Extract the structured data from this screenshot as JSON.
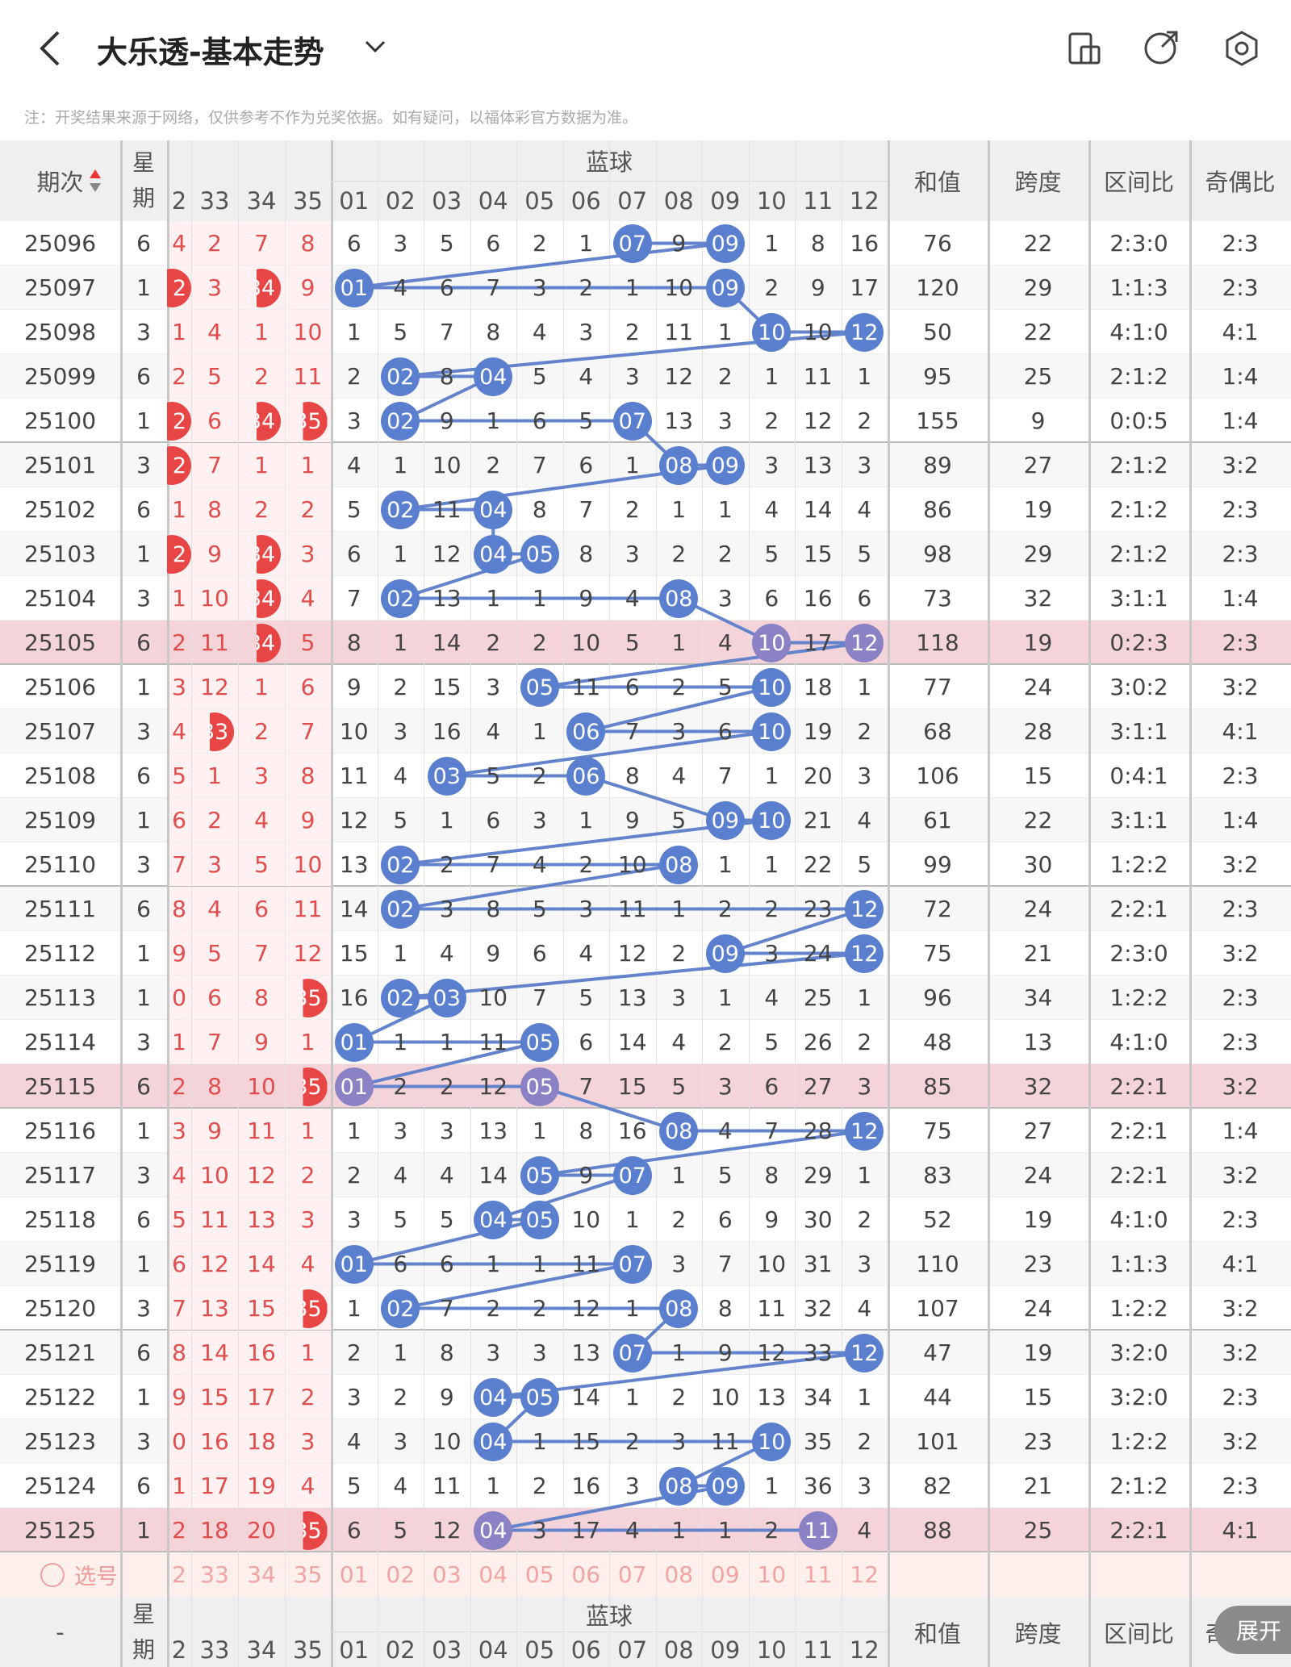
{
  "header": {
    "title": "大乐透-基本走势",
    "note": "注：开奖结果来源于网络，仅供参考不作为兑奖依据。如有疑问，以福体彩官方数据为准。"
  },
  "table": {
    "columns": {
      "period": "期次",
      "weekday": "星期",
      "blue_group": "蓝球",
      "red": [
        "2",
        "33",
        "34",
        "35"
      ],
      "blue": [
        "01",
        "02",
        "03",
        "04",
        "05",
        "06",
        "07",
        "08",
        "09",
        "10",
        "11",
        "12"
      ],
      "sum": "和值",
      "span": "跨度",
      "zone": "区间比",
      "odd_even": "奇偶比"
    },
    "rows": [
      {
        "period": "25096",
        "weekday": "6",
        "red": [
          "4",
          "2",
          "7",
          "8"
        ],
        "red_hits": [],
        "blue": [
          "6",
          "3",
          "5",
          "6",
          "2",
          "1",
          "07",
          "9",
          "09",
          "1",
          "8",
          "16"
        ],
        "blue_hits": [
          6,
          8
        ],
        "sum": "76",
        "span": "22",
        "zone": "2:3:0",
        "odd_even": "2:3",
        "highlight": false
      },
      {
        "period": "25097",
        "weekday": "1",
        "red": [
          "2",
          "3",
          "34",
          "9"
        ],
        "red_hits": [
          0,
          2
        ],
        "blue": [
          "01",
          "4",
          "6",
          "7",
          "3",
          "2",
          "1",
          "10",
          "09",
          "2",
          "9",
          "17"
        ],
        "blue_hits": [
          0,
          8
        ],
        "sum": "120",
        "span": "29",
        "zone": "1:1:3",
        "odd_even": "2:3",
        "highlight": false
      },
      {
        "period": "25098",
        "weekday": "3",
        "red": [
          "1",
          "4",
          "1",
          "10"
        ],
        "red_hits": [],
        "blue": [
          "1",
          "5",
          "7",
          "8",
          "4",
          "3",
          "2",
          "11",
          "1",
          "10",
          "10",
          "12"
        ],
        "blue_hits": [
          9,
          11
        ],
        "sum": "50",
        "span": "22",
        "zone": "4:1:0",
        "odd_even": "4:1",
        "highlight": false
      },
      {
        "period": "25099",
        "weekday": "6",
        "red": [
          "2",
          "5",
          "2",
          "11"
        ],
        "red_hits": [],
        "blue": [
          "2",
          "02",
          "8",
          "04",
          "5",
          "4",
          "3",
          "12",
          "2",
          "1",
          "11",
          "1"
        ],
        "blue_hits": [
          1,
          3
        ],
        "sum": "95",
        "span": "25",
        "zone": "2:1:2",
        "odd_even": "1:4",
        "highlight": false
      },
      {
        "period": "25100",
        "weekday": "1",
        "red": [
          "2",
          "6",
          "34",
          "35"
        ],
        "red_hits": [
          0,
          2,
          3
        ],
        "blue": [
          "3",
          "02",
          "9",
          "1",
          "6",
          "5",
          "07",
          "13",
          "3",
          "2",
          "12",
          "2"
        ],
        "blue_hits": [
          1,
          6
        ],
        "sum": "155",
        "span": "9",
        "zone": "0:0:5",
        "odd_even": "1:4",
        "highlight": false
      },
      {
        "period": "25101",
        "weekday": "3",
        "red": [
          "2",
          "7",
          "1",
          "1"
        ],
        "red_hits": [
          0
        ],
        "blue": [
          "4",
          "1",
          "10",
          "2",
          "7",
          "6",
          "1",
          "08",
          "09",
          "3",
          "13",
          "3"
        ],
        "blue_hits": [
          7,
          8
        ],
        "sum": "89",
        "span": "27",
        "zone": "2:1:2",
        "odd_even": "3:2",
        "highlight": false
      },
      {
        "period": "25102",
        "weekday": "6",
        "red": [
          "1",
          "8",
          "2",
          "2"
        ],
        "red_hits": [],
        "blue": [
          "5",
          "02",
          "11",
          "04",
          "8",
          "7",
          "2",
          "1",
          "1",
          "4",
          "14",
          "4"
        ],
        "blue_hits": [
          1,
          3
        ],
        "sum": "86",
        "span": "19",
        "zone": "2:1:2",
        "odd_even": "2:3",
        "highlight": false
      },
      {
        "period": "25103",
        "weekday": "1",
        "red": [
          "2",
          "9",
          "34",
          "3"
        ],
        "red_hits": [
          0,
          2
        ],
        "blue": [
          "6",
          "1",
          "12",
          "04",
          "05",
          "8",
          "3",
          "2",
          "2",
          "5",
          "15",
          "5"
        ],
        "blue_hits": [
          3,
          4
        ],
        "sum": "98",
        "span": "29",
        "zone": "2:1:2",
        "odd_even": "2:3",
        "highlight": false
      },
      {
        "period": "25104",
        "weekday": "3",
        "red": [
          "1",
          "10",
          "34",
          "4"
        ],
        "red_hits": [
          2
        ],
        "blue": [
          "7",
          "02",
          "13",
          "1",
          "1",
          "9",
          "4",
          "08",
          "3",
          "6",
          "16",
          "6"
        ],
        "blue_hits": [
          1,
          7
        ],
        "sum": "73",
        "span": "32",
        "zone": "3:1:1",
        "odd_even": "1:4",
        "highlight": false
      },
      {
        "period": "25105",
        "weekday": "6",
        "red": [
          "2",
          "11",
          "34",
          "5"
        ],
        "red_hits": [
          2
        ],
        "blue": [
          "8",
          "1",
          "14",
          "2",
          "2",
          "10",
          "5",
          "1",
          "4",
          "10",
          "17",
          "12"
        ],
        "blue_hits": [
          9,
          11
        ],
        "sum": "118",
        "span": "19",
        "zone": "0:2:3",
        "odd_even": "2:3",
        "highlight": true
      },
      {
        "period": "25106",
        "weekday": "1",
        "red": [
          "3",
          "12",
          "1",
          "6"
        ],
        "red_hits": [],
        "blue": [
          "9",
          "2",
          "15",
          "3",
          "05",
          "11",
          "6",
          "2",
          "5",
          "10",
          "18",
          "1"
        ],
        "blue_hits": [
          4,
          9
        ],
        "sum": "77",
        "span": "24",
        "zone": "3:0:2",
        "odd_even": "3:2",
        "highlight": false
      },
      {
        "period": "25107",
        "weekday": "3",
        "red": [
          "4",
          "33",
          "2",
          "7"
        ],
        "red_hits": [
          1
        ],
        "blue": [
          "10",
          "3",
          "16",
          "4",
          "1",
          "06",
          "7",
          "3",
          "6",
          "10",
          "19",
          "2"
        ],
        "blue_hits": [
          5,
          9
        ],
        "sum": "68",
        "span": "28",
        "zone": "3:1:1",
        "odd_even": "4:1",
        "highlight": false
      },
      {
        "period": "25108",
        "weekday": "6",
        "red": [
          "5",
          "1",
          "3",
          "8"
        ],
        "red_hits": [],
        "blue": [
          "11",
          "4",
          "03",
          "5",
          "2",
          "06",
          "8",
          "4",
          "7",
          "1",
          "20",
          "3"
        ],
        "blue_hits": [
          2,
          5
        ],
        "sum": "106",
        "span": "15",
        "zone": "0:4:1",
        "odd_even": "2:3",
        "highlight": false
      },
      {
        "period": "25109",
        "weekday": "1",
        "red": [
          "6",
          "2",
          "4",
          "9"
        ],
        "red_hits": [],
        "blue": [
          "12",
          "5",
          "1",
          "6",
          "3",
          "1",
          "9",
          "5",
          "09",
          "10",
          "21",
          "4"
        ],
        "blue_hits": [
          8,
          9
        ],
        "sum": "61",
        "span": "22",
        "zone": "3:1:1",
        "odd_even": "1:4",
        "highlight": false
      },
      {
        "period": "25110",
        "weekday": "3",
        "red": [
          "7",
          "3",
          "5",
          "10"
        ],
        "red_hits": [],
        "blue": [
          "13",
          "02",
          "2",
          "7",
          "4",
          "2",
          "10",
          "08",
          "1",
          "1",
          "22",
          "5"
        ],
        "blue_hits": [
          1,
          7
        ],
        "sum": "99",
        "span": "30",
        "zone": "1:2:2",
        "odd_even": "3:2",
        "highlight": false
      },
      {
        "period": "25111",
        "weekday": "6",
        "red": [
          "8",
          "4",
          "6",
          "11"
        ],
        "red_hits": [],
        "blue": [
          "14",
          "02",
          "3",
          "8",
          "5",
          "3",
          "11",
          "1",
          "2",
          "2",
          "23",
          "12"
        ],
        "blue_hits": [
          1,
          11
        ],
        "sum": "72",
        "span": "24",
        "zone": "2:2:1",
        "odd_even": "2:3",
        "highlight": false
      },
      {
        "period": "25112",
        "weekday": "1",
        "red": [
          "9",
          "5",
          "7",
          "12"
        ],
        "red_hits": [],
        "blue": [
          "15",
          "1",
          "4",
          "9",
          "6",
          "4",
          "12",
          "2",
          "09",
          "3",
          "24",
          "12"
        ],
        "blue_hits": [
          8,
          11
        ],
        "sum": "75",
        "span": "21",
        "zone": "2:3:0",
        "odd_even": "3:2",
        "highlight": false
      },
      {
        "period": "25113",
        "weekday": "1",
        "red": [
          "0",
          "6",
          "8",
          "35"
        ],
        "red_hits": [
          3
        ],
        "blue": [
          "16",
          "02",
          "03",
          "10",
          "7",
          "5",
          "13",
          "3",
          "1",
          "4",
          "25",
          "1"
        ],
        "blue_hits": [
          1,
          2
        ],
        "sum": "96",
        "span": "34",
        "zone": "1:2:2",
        "odd_even": "2:3",
        "highlight": false
      },
      {
        "period": "25114",
        "weekday": "3",
        "red": [
          "1",
          "7",
          "9",
          "1"
        ],
        "red_hits": [],
        "blue": [
          "01",
          "1",
          "1",
          "11",
          "05",
          "6",
          "14",
          "4",
          "2",
          "5",
          "26",
          "2"
        ],
        "blue_hits": [
          0,
          4
        ],
        "sum": "48",
        "span": "13",
        "zone": "4:1:0",
        "odd_even": "2:3",
        "highlight": false
      },
      {
        "period": "25115",
        "weekday": "6",
        "red": [
          "2",
          "8",
          "10",
          "35"
        ],
        "red_hits": [
          3
        ],
        "blue": [
          "01",
          "2",
          "2",
          "12",
          "05",
          "7",
          "15",
          "5",
          "3",
          "6",
          "27",
          "3"
        ],
        "blue_hits": [
          0,
          4
        ],
        "sum": "85",
        "span": "32",
        "zone": "2:2:1",
        "odd_even": "3:2",
        "highlight": true
      },
      {
        "period": "25116",
        "weekday": "1",
        "red": [
          "3",
          "9",
          "11",
          "1"
        ],
        "red_hits": [],
        "blue": [
          "1",
          "3",
          "3",
          "13",
          "1",
          "8",
          "16",
          "08",
          "4",
          "7",
          "28",
          "12"
        ],
        "blue_hits": [
          7,
          11
        ],
        "sum": "75",
        "span": "27",
        "zone": "2:2:1",
        "odd_even": "1:4",
        "highlight": false
      },
      {
        "period": "25117",
        "weekday": "3",
        "red": [
          "4",
          "10",
          "12",
          "2"
        ],
        "red_hits": [],
        "blue": [
          "2",
          "4",
          "4",
          "14",
          "05",
          "9",
          "07",
          "1",
          "5",
          "8",
          "29",
          "1"
        ],
        "blue_hits": [
          4,
          6
        ],
        "sum": "83",
        "span": "24",
        "zone": "2:2:1",
        "odd_even": "3:2",
        "highlight": false
      },
      {
        "period": "25118",
        "weekday": "6",
        "red": [
          "5",
          "11",
          "13",
          "3"
        ],
        "red_hits": [],
        "blue": [
          "3",
          "5",
          "5",
          "04",
          "05",
          "10",
          "1",
          "2",
          "6",
          "9",
          "30",
          "2"
        ],
        "blue_hits": [
          3,
          4
        ],
        "sum": "52",
        "span": "19",
        "zone": "4:1:0",
        "odd_even": "2:3",
        "highlight": false
      },
      {
        "period": "25119",
        "weekday": "1",
        "red": [
          "6",
          "12",
          "14",
          "4"
        ],
        "red_hits": [],
        "blue": [
          "01",
          "6",
          "6",
          "1",
          "1",
          "11",
          "07",
          "3",
          "7",
          "10",
          "31",
          "3"
        ],
        "blue_hits": [
          0,
          6
        ],
        "sum": "110",
        "span": "23",
        "zone": "1:1:3",
        "odd_even": "4:1",
        "highlight": false
      },
      {
        "period": "25120",
        "weekday": "3",
        "red": [
          "7",
          "13",
          "15",
          "35"
        ],
        "red_hits": [
          3
        ],
        "blue": [
          "1",
          "02",
          "7",
          "2",
          "2",
          "12",
          "1",
          "08",
          "8",
          "11",
          "32",
          "4"
        ],
        "blue_hits": [
          1,
          7
        ],
        "sum": "107",
        "span": "24",
        "zone": "1:2:2",
        "odd_even": "3:2",
        "highlight": false
      },
      {
        "period": "25121",
        "weekday": "6",
        "red": [
          "8",
          "14",
          "16",
          "1"
        ],
        "red_hits": [],
        "blue": [
          "2",
          "1",
          "8",
          "3",
          "3",
          "13",
          "07",
          "1",
          "9",
          "12",
          "33",
          "12"
        ],
        "blue_hits": [
          6,
          11
        ],
        "sum": "47",
        "span": "19",
        "zone": "3:2:0",
        "odd_even": "3:2",
        "highlight": false
      },
      {
        "period": "25122",
        "weekday": "1",
        "red": [
          "9",
          "15",
          "17",
          "2"
        ],
        "red_hits": [],
        "blue": [
          "3",
          "2",
          "9",
          "04",
          "05",
          "14",
          "1",
          "2",
          "10",
          "13",
          "34",
          "1"
        ],
        "blue_hits": [
          3,
          4
        ],
        "sum": "44",
        "span": "15",
        "zone": "3:2:0",
        "odd_even": "2:3",
        "highlight": false
      },
      {
        "period": "25123",
        "weekday": "3",
        "red": [
          "0",
          "16",
          "18",
          "3"
        ],
        "red_hits": [],
        "blue": [
          "4",
          "3",
          "10",
          "04",
          "1",
          "15",
          "2",
          "3",
          "11",
          "10",
          "35",
          "2"
        ],
        "blue_hits": [
          3,
          9
        ],
        "sum": "101",
        "span": "23",
        "zone": "1:2:2",
        "odd_even": "3:2",
        "highlight": false
      },
      {
        "period": "25124",
        "weekday": "6",
        "red": [
          "1",
          "17",
          "19",
          "4"
        ],
        "red_hits": [],
        "blue": [
          "5",
          "4",
          "11",
          "1",
          "2",
          "16",
          "3",
          "08",
          "09",
          "1",
          "36",
          "3"
        ],
        "blue_hits": [
          7,
          8
        ],
        "sum": "82",
        "span": "21",
        "zone": "2:1:2",
        "odd_even": "2:3",
        "highlight": false
      },
      {
        "period": "25125",
        "weekday": "1",
        "red": [
          "2",
          "18",
          "20",
          "35"
        ],
        "red_hits": [
          3
        ],
        "blue": [
          "6",
          "5",
          "12",
          "04",
          "3",
          "17",
          "4",
          "1",
          "1",
          "2",
          "11",
          "4"
        ],
        "blue_hits": [
          3,
          10
        ],
        "sum": "88",
        "span": "25",
        "zone": "2:2:1",
        "odd_even": "4:1",
        "highlight": true
      }
    ]
  },
  "select_row": {
    "label": "选号"
  },
  "footer_header": {
    "period": "-"
  },
  "expand_button": "展开"
}
